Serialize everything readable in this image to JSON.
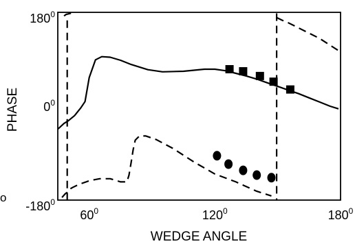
{
  "chart_data": {
    "type": "line",
    "title": "",
    "xlabel": "WEDGE ANGLE",
    "ylabel": "PHASE",
    "xlim": [
      45,
      180
    ],
    "ylim": [
      -180,
      180
    ],
    "x_ticks": [
      {
        "value": 60,
        "num": "60",
        "sup": "0"
      },
      {
        "value": 120,
        "num": "120",
        "sup": "0"
      },
      {
        "value": 180,
        "num": "180",
        "sup": "0"
      }
    ],
    "y_ticks": [
      {
        "value": 180,
        "num": "180",
        "sup": "0"
      },
      {
        "value": 0,
        "num": "0",
        "sup": "0"
      },
      {
        "value": -180,
        "num": "-180",
        "sup": "0"
      }
    ],
    "stray_label": "o",
    "series": [
      {
        "style": "solid",
        "x": [
          45,
          48,
          50,
          53,
          56,
          58,
          60,
          63,
          66,
          70,
          75,
          80,
          88,
          95,
          105,
          115,
          120,
          125,
          130,
          135,
          140,
          145,
          150,
          155,
          160,
          165,
          170,
          175,
          179
        ],
        "y": [
          -44,
          -33,
          -28,
          -18,
          -3,
          9,
          55,
          89,
          95,
          94,
          88,
          80,
          70,
          66,
          67,
          71,
          71,
          68,
          63,
          58,
          52,
          45,
          38,
          31,
          24,
          16,
          8,
          0,
          -5
        ]
      },
      {
        "style": "dashed",
        "x": [
          47,
          48.5,
          49.5,
          50,
          50.3,
          52,
          55,
          60,
          65,
          70,
          75,
          78,
          79,
          80,
          81,
          82,
          84,
          87,
          92,
          100,
          110,
          120,
          130,
          140,
          147
        ],
        "y": [
          -175,
          -168,
          -165,
          -161,
          -160,
          -156,
          -150,
          -143,
          -139,
          -139,
          -145,
          -145,
          -132,
          -108,
          -83,
          -65,
          -57,
          -57,
          -64,
          -81,
          -107,
          -130,
          -145,
          -163,
          -172
        ]
      },
      {
        "style": "dashed",
        "x": [
          48,
          49,
          50,
          51,
          51.5
        ],
        "y": [
          173,
          176,
          177,
          178,
          179
        ]
      },
      {
        "style": "dashed",
        "x": [
          149.5,
          152,
          155,
          160,
          165,
          170,
          175,
          180
        ],
        "y": [
          170,
          165,
          160,
          150,
          140,
          130,
          117,
          104
        ]
      },
      {
        "style": "dashed",
        "x": [
          49.5,
          49.5
        ],
        "y": [
          -181,
          166
        ]
      },
      {
        "style": "dashed",
        "x": [
          149.5,
          149.5
        ],
        "y": [
          178,
          -181
        ]
      },
      {
        "style": "markers-square",
        "x": [
          127,
          133.5,
          141.5,
          148,
          156
        ],
        "y": [
          71,
          67,
          58,
          47,
          32
        ]
      },
      {
        "style": "markers-circle",
        "x": [
          121,
          126.5,
          133.5,
          140,
          147
        ],
        "y": [
          -95,
          -111,
          -123,
          -132,
          -137
        ]
      }
    ]
  }
}
